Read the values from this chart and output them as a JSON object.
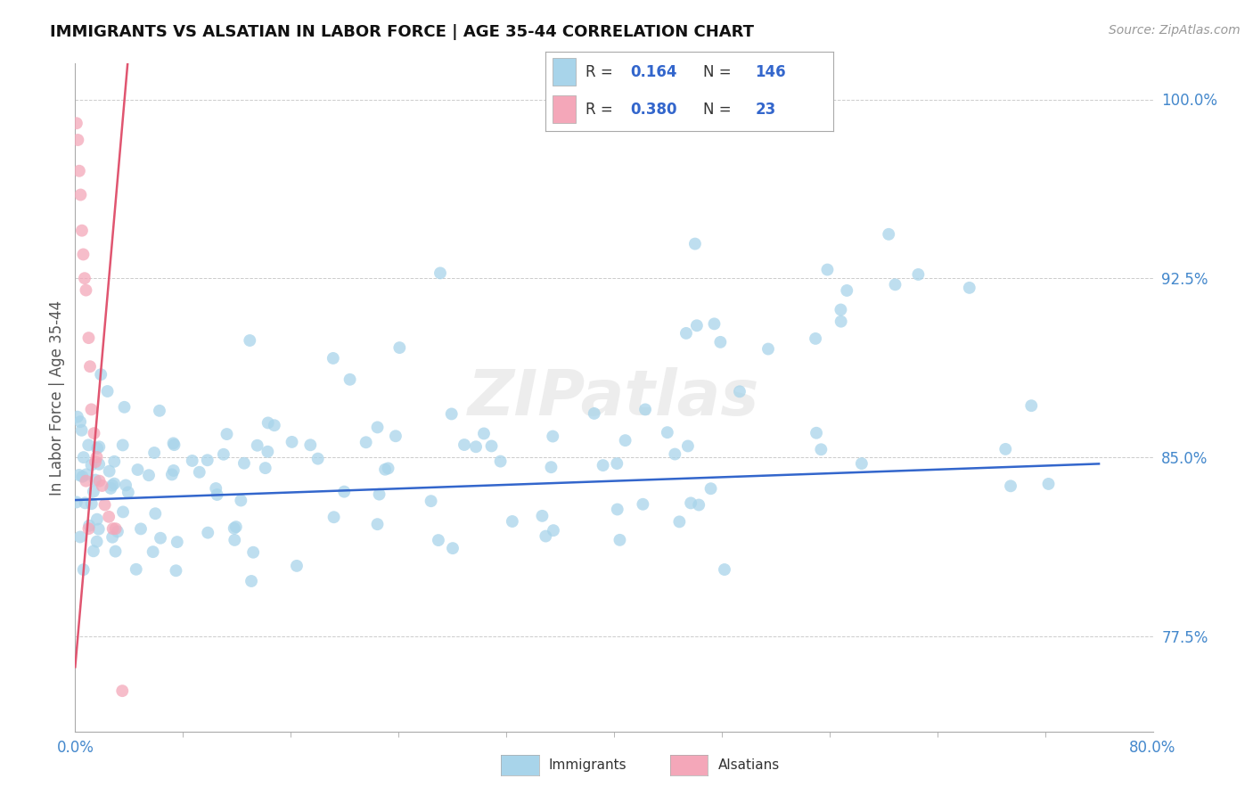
{
  "title": "IMMIGRANTS VS ALSATIAN IN LABOR FORCE | AGE 35-44 CORRELATION CHART",
  "source": "Source: ZipAtlas.com",
  "ylabel": "In Labor Force | Age 35-44",
  "xlim": [
    0.0,
    0.8
  ],
  "ylim": [
    0.735,
    1.015
  ],
  "yticks": [
    0.775,
    0.85,
    0.925,
    1.0
  ],
  "ytick_labels": [
    "77.5%",
    "85.0%",
    "92.5%",
    "100.0%"
  ],
  "xtick_labels": [
    "0.0%",
    "80.0%"
  ],
  "immigrants_color": "#a8d4ea",
  "alsatians_color": "#f4a7b9",
  "immigrants_line_color": "#3366cc",
  "alsatians_line_color": "#e05570",
  "immigrants_R": 0.164,
  "immigrants_N": 146,
  "alsatians_R": 0.38,
  "alsatians_N": 23,
  "watermark": "ZIPatlas",
  "imm_seed": 42,
  "als_seed": 99,
  "legend_R_color": "#3366cc",
  "legend_text_color": "#333333"
}
